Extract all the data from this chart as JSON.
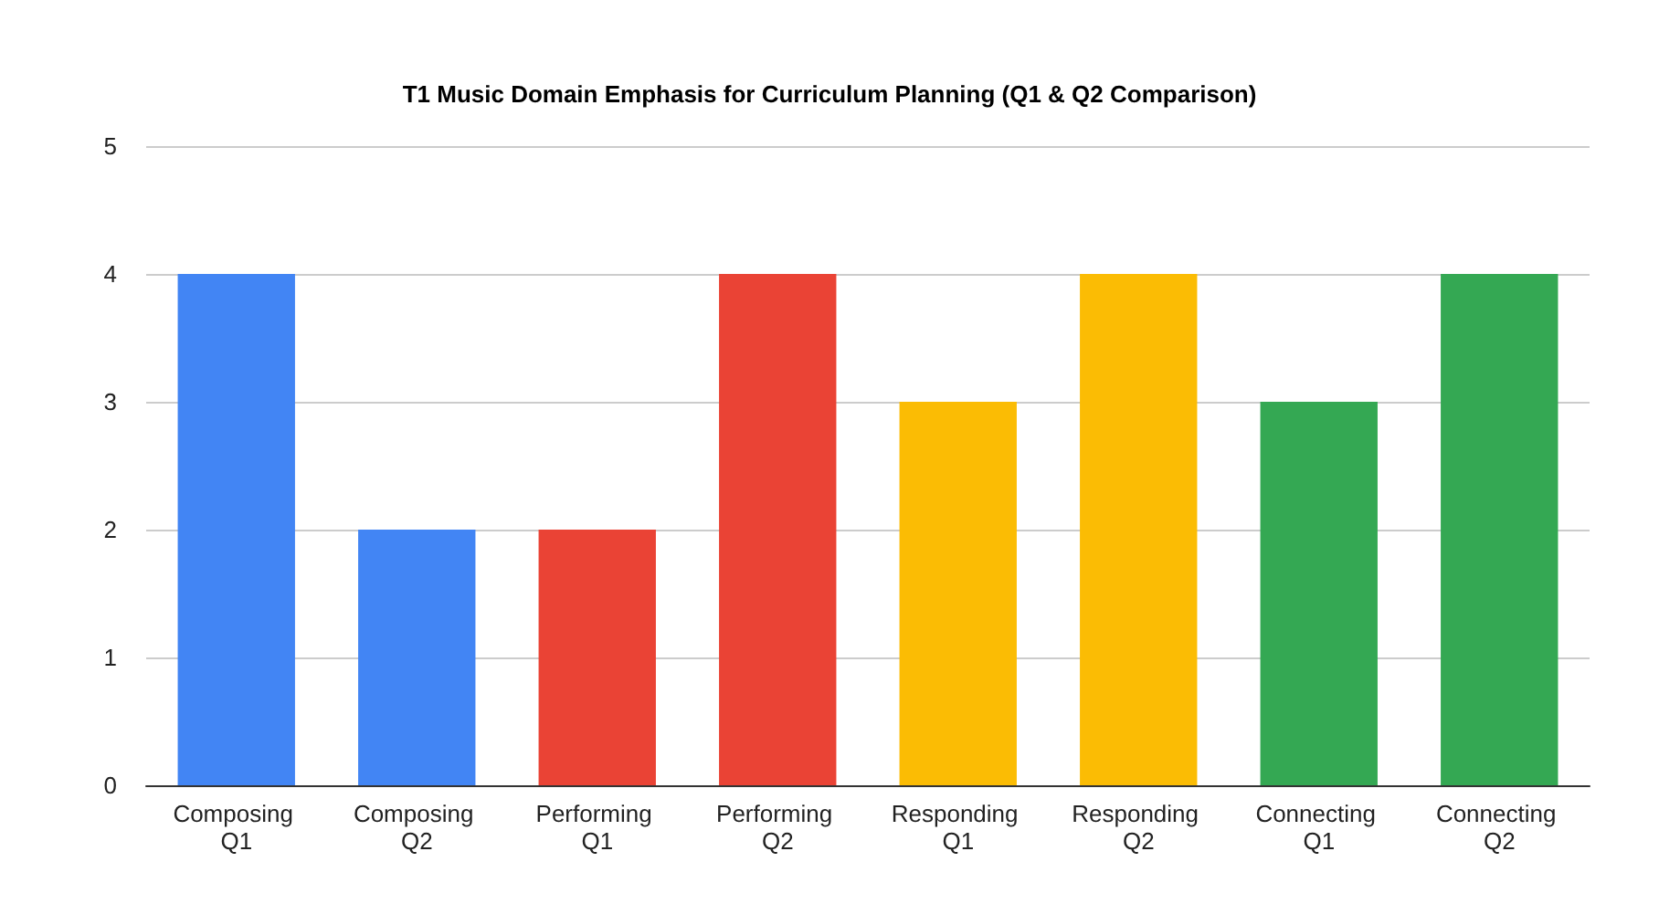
{
  "chart_data": {
    "type": "bar",
    "title": "T1 Music Domain Emphasis for Curriculum Planning (Q1 & Q2 Comparison)",
    "categories": [
      "Composing Q1",
      "Composing Q2",
      "Performing Q1",
      "Performing Q2",
      "Responding Q1",
      "Responding Q2",
      "Connecting Q1",
      "Connecting Q2"
    ],
    "values": [
      4,
      2,
      2,
      4,
      3,
      4,
      3,
      4
    ],
    "colors": [
      "#4285f4",
      "#4285f4",
      "#ea4335",
      "#ea4335",
      "#fbbc04",
      "#fbbc04",
      "#34a853",
      "#34a853"
    ],
    "ylim": [
      0,
      5
    ],
    "yticks": [
      0,
      1,
      2,
      3,
      4,
      5
    ],
    "grid": "y"
  }
}
